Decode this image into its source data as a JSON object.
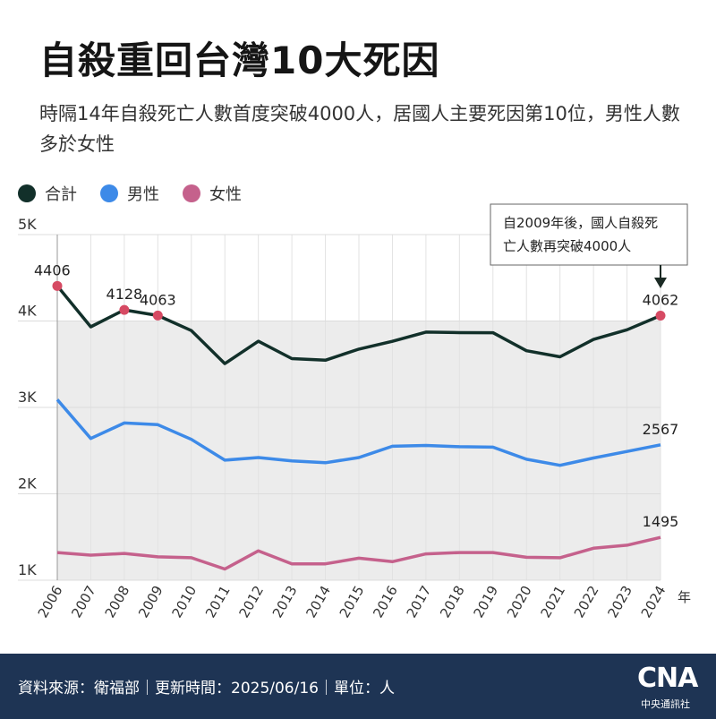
{
  "header": {
    "title": "自殺重回台灣10大死因",
    "subtitle": "時隔14年自殺死亡人數首度突破4000人，居國人主要死因第10位，男性人數多於女性"
  },
  "chart_data": {
    "type": "line",
    "x": [
      "2006",
      "2007",
      "2008",
      "2009",
      "2010",
      "2011",
      "2012",
      "2013",
      "2014",
      "2015",
      "2016",
      "2017",
      "2018",
      "2019",
      "2020",
      "2021",
      "2022",
      "2023",
      "2024"
    ],
    "x_unit": "年",
    "ylim": [
      1000,
      5000
    ],
    "y_ticks": [
      "1K",
      "2K",
      "3K",
      "4K",
      "5K"
    ],
    "series": [
      {
        "name": "合計",
        "color": "#12302a",
        "values": [
          4406,
          3933,
          4128,
          4063,
          3889,
          3507,
          3766,
          3565,
          3546,
          3675,
          3765,
          3871,
          3865,
          3864,
          3656,
          3585,
          3787,
          3898,
          4062
        ]
      },
      {
        "name": "男性",
        "color": "#3d8ae8",
        "values": [
          3090,
          2640,
          2820,
          2800,
          2630,
          2390,
          2420,
          2380,
          2360,
          2420,
          2550,
          2560,
          2545,
          2540,
          2400,
          2330,
          2415,
          2490,
          2567
        ]
      },
      {
        "name": "女性",
        "color": "#c5618c",
        "values": [
          1320,
          1290,
          1310,
          1270,
          1260,
          1130,
          1340,
          1190,
          1190,
          1255,
          1215,
          1305,
          1320,
          1320,
          1265,
          1260,
          1370,
          1405,
          1495
        ]
      }
    ],
    "data_labels": [
      {
        "label": "4406",
        "series": 0,
        "index": 0
      },
      {
        "label": "4128",
        "series": 0,
        "index": 2
      },
      {
        "label": "4063",
        "series": 0,
        "index": 3
      },
      {
        "label": "4062",
        "series": 0,
        "index": 18
      },
      {
        "label": "2567",
        "series": 1,
        "index": 18
      },
      {
        "label": "1495",
        "series": 2,
        "index": 18
      }
    ],
    "highlighted_points": [
      {
        "series": 0,
        "index": 0
      },
      {
        "series": 0,
        "index": 2
      },
      {
        "series": 0,
        "index": 3
      },
      {
        "series": 0,
        "index": 18
      }
    ],
    "shaded_band": [
      1000,
      4000
    ],
    "annotation": {
      "text_line1": "自2009年後，國人自殺死",
      "text_line2": "亡人數再突破4000人",
      "points_to": {
        "series": 0,
        "index": 18
      }
    },
    "legend_position": "top-left",
    "grid": true
  },
  "footer": {
    "source": "資料來源：衛福部｜更新時間：2025/06/16｜單位：人",
    "logo_text": "CNA",
    "logo_subtext": "中央通訊社",
    "background_color": "#1e3454"
  }
}
